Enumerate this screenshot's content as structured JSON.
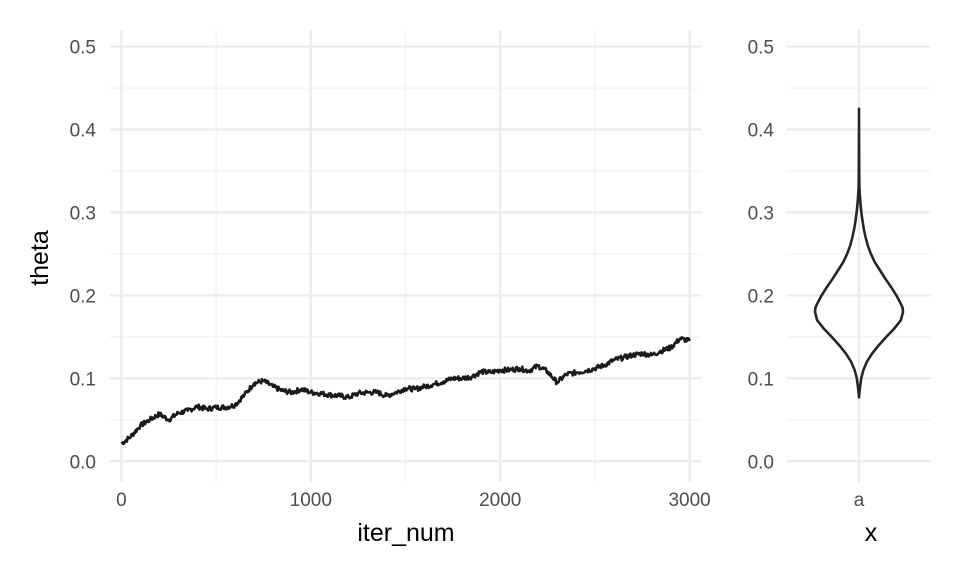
{
  "chart_data": [
    {
      "type": "line",
      "xlabel": "iter_num",
      "ylabel": "theta",
      "xlim": [
        -60,
        3060
      ],
      "ylim": [
        -0.025,
        0.52
      ],
      "x_ticks": [
        0,
        1000,
        2000,
        3000
      ],
      "x_tick_labels": [
        "0",
        "1000",
        "2000",
        "3000"
      ],
      "y_ticks": [
        0.0,
        0.1,
        0.2,
        0.3,
        0.4,
        0.5
      ],
      "y_tick_labels": [
        "0.0",
        "0.1",
        "0.2",
        "0.3",
        "0.4",
        "0.5"
      ],
      "grid": true,
      "series": [
        {
          "x": [
            0,
            50,
            100,
            150,
            200,
            250,
            300,
            350,
            400,
            450,
            500,
            550,
            600,
            650,
            700,
            750,
            800,
            850,
            900,
            950,
            1000,
            1050,
            1100,
            1150,
            1200,
            1250,
            1300,
            1350,
            1400,
            1450,
            1500,
            1550,
            1600,
            1650,
            1700,
            1750,
            1800,
            1850,
            1900,
            1950,
            2000,
            2050,
            2100,
            2150,
            2200,
            2250,
            2300,
            2350,
            2400,
            2450,
            2500,
            2550,
            2600,
            2650,
            2700,
            2750,
            2800,
            2850,
            2900,
            2950,
            3000
          ],
          "values": [
            0.021,
            0.03,
            0.043,
            0.05,
            0.057,
            0.05,
            0.058,
            0.061,
            0.066,
            0.063,
            0.065,
            0.065,
            0.068,
            0.08,
            0.094,
            0.097,
            0.09,
            0.085,
            0.083,
            0.087,
            0.083,
            0.082,
            0.08,
            0.079,
            0.077,
            0.082,
            0.083,
            0.083,
            0.079,
            0.083,
            0.088,
            0.087,
            0.09,
            0.093,
            0.096,
            0.1,
            0.1,
            0.102,
            0.108,
            0.107,
            0.11,
            0.11,
            0.112,
            0.109,
            0.115,
            0.108,
            0.095,
            0.105,
            0.107,
            0.109,
            0.112,
            0.116,
            0.122,
            0.125,
            0.128,
            0.13,
            0.128,
            0.133,
            0.137,
            0.148,
            0.145
          ]
        }
      ]
    },
    {
      "type": "area",
      "subtype": "violin",
      "xlabel": "x",
      "ylabel": "",
      "categories": [
        "a"
      ],
      "ylim": [
        -0.025,
        0.52
      ],
      "y_ticks": [
        0.0,
        0.1,
        0.2,
        0.3,
        0.4,
        0.5
      ],
      "y_tick_labels": [
        "0.0",
        "0.1",
        "0.2",
        "0.3",
        "0.4",
        "0.5"
      ],
      "grid": true,
      "density": {
        "y": [
          0.077,
          0.08,
          0.09,
          0.1,
          0.11,
          0.12,
          0.13,
          0.14,
          0.15,
          0.16,
          0.17,
          0.18,
          0.185,
          0.19,
          0.2,
          0.21,
          0.22,
          0.23,
          0.24,
          0.25,
          0.26,
          0.27,
          0.28,
          0.29,
          0.3,
          0.31,
          0.32,
          0.33,
          0.35,
          0.38,
          0.41,
          0.425
        ],
        "half_width": [
          0.0,
          0.005,
          0.025,
          0.05,
          0.1,
          0.18,
          0.3,
          0.45,
          0.62,
          0.8,
          0.95,
          1.0,
          0.99,
          0.95,
          0.85,
          0.73,
          0.6,
          0.48,
          0.36,
          0.27,
          0.2,
          0.15,
          0.11,
          0.08,
          0.055,
          0.035,
          0.02,
          0.01,
          0.004,
          0.002,
          0.001,
          0.0
        ]
      }
    }
  ]
}
